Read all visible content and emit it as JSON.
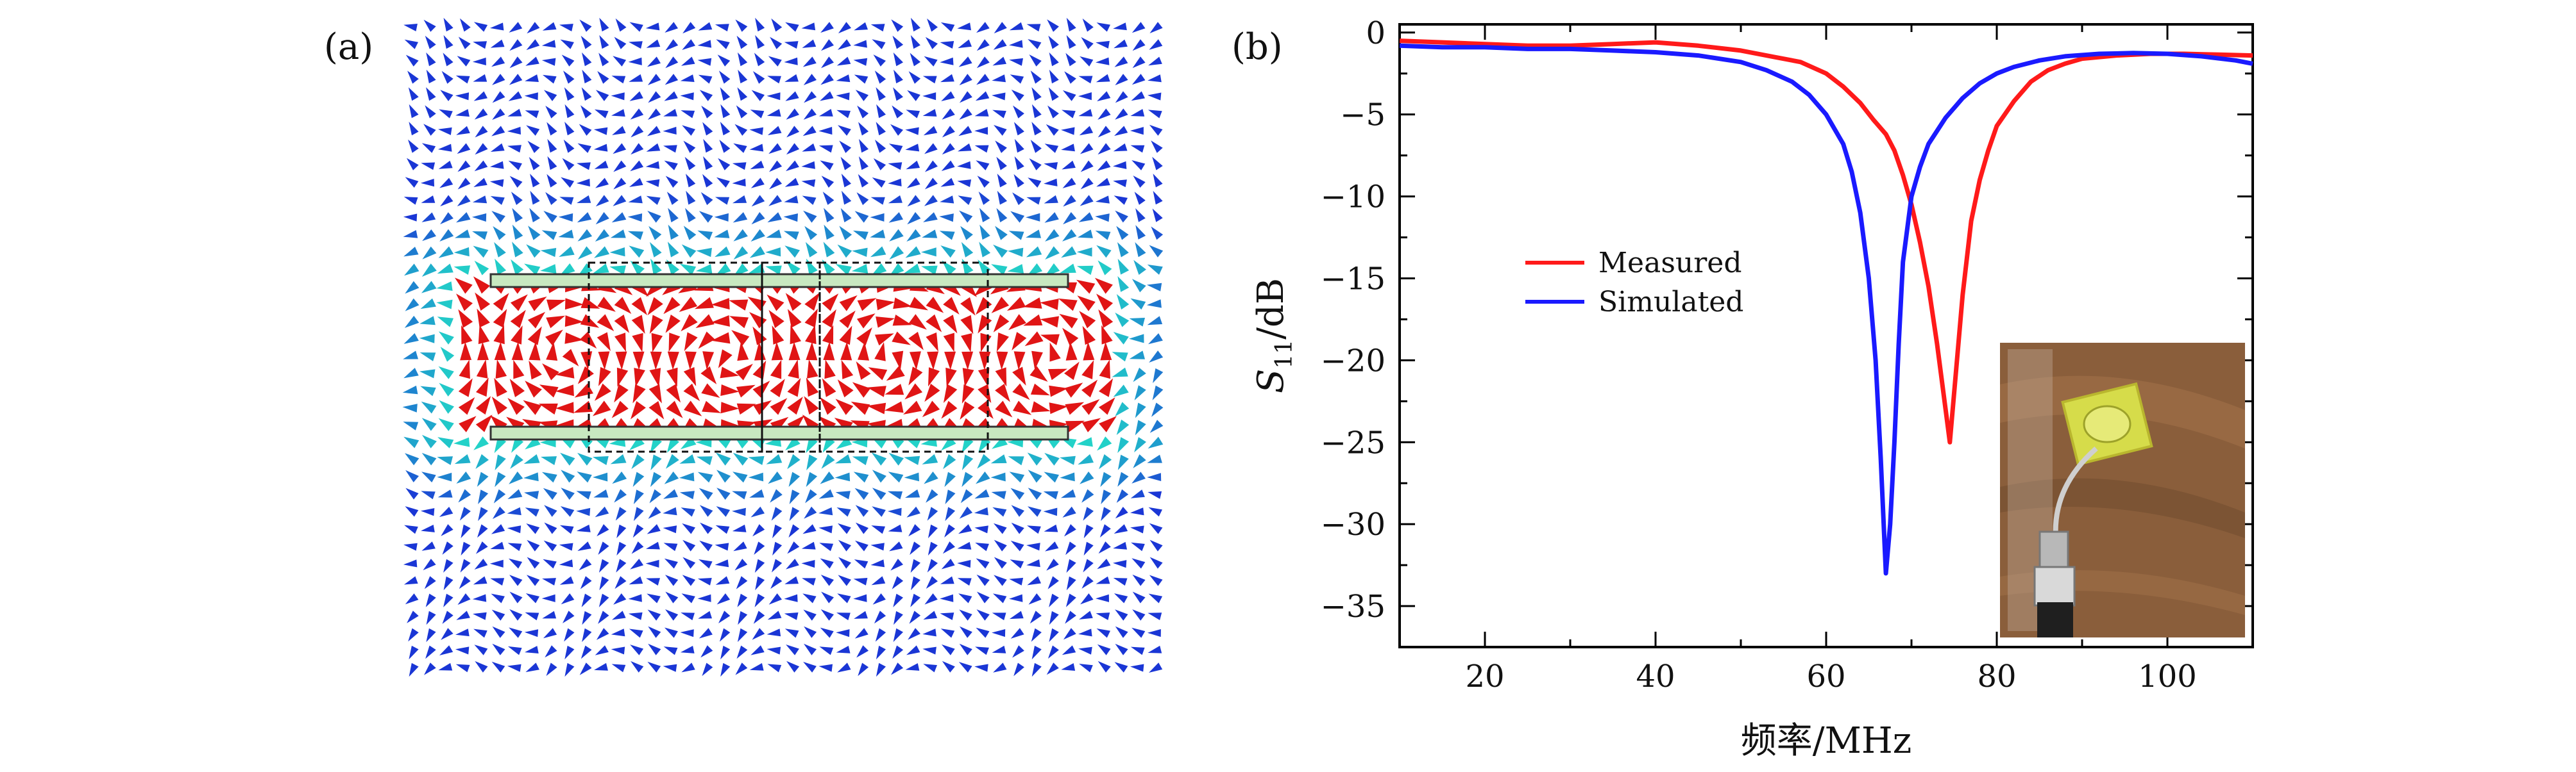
{
  "panel_a": {
    "label": "(a)",
    "description_colors": {
      "low": "#1a2fd6",
      "mid": "#22d3c8",
      "high": "#e01515",
      "strip_fill": "#c8e8c0"
    }
  },
  "panel_b": {
    "label": "(b)"
  },
  "chart_data": {
    "type": "line",
    "title": "",
    "xlabel": "频率/MHz",
    "ylabel_main": "S",
    "ylabel_sub": "11",
    "ylabel_unit": "/dB",
    "xlim": [
      10,
      110
    ],
    "ylim": [
      -37.5,
      0.5
    ],
    "xticks": [
      20,
      40,
      60,
      80,
      100
    ],
    "yticks": [
      0,
      -5,
      -10,
      -15,
      -20,
      -25,
      -30,
      -35
    ],
    "legend_position": "center-left",
    "series": [
      {
        "name": "Measured",
        "color": "#ff1a1a",
        "x": [
          10,
          15,
          20,
          25,
          30,
          35,
          40,
          45,
          50,
          54,
          57,
          60,
          62,
          64,
          65.5,
          67,
          68,
          69,
          70,
          71,
          72,
          73,
          74,
          74.5,
          75,
          76,
          77,
          78,
          79,
          80,
          82,
          84,
          86,
          88,
          90,
          94,
          98,
          102,
          106,
          110
        ],
        "y": [
          -0.5,
          -0.6,
          -0.7,
          -0.8,
          -0.8,
          -0.7,
          -0.6,
          -0.8,
          -1.1,
          -1.5,
          -1.8,
          -2.5,
          -3.3,
          -4.3,
          -5.3,
          -6.2,
          -7.2,
          -8.7,
          -10.5,
          -12.8,
          -15.5,
          -19,
          -23,
          -25,
          -22,
          -16,
          -11.5,
          -9,
          -7.2,
          -5.7,
          -4.2,
          -3,
          -2.3,
          -1.9,
          -1.6,
          -1.4,
          -1.3,
          -1.3,
          -1.35,
          -1.4
        ]
      },
      {
        "name": "Simulated",
        "color": "#1a1aff",
        "x": [
          10,
          15,
          20,
          25,
          30,
          35,
          40,
          45,
          50,
          53,
          56,
          58,
          60,
          62,
          63,
          64,
          65,
          65.8,
          66.4,
          67,
          67.5,
          68,
          68.5,
          69,
          70,
          71,
          72,
          74,
          76,
          78,
          80,
          82,
          85,
          88,
          92,
          96,
          100,
          104,
          108,
          110
        ],
        "y": [
          -0.8,
          -0.9,
          -0.9,
          -1.0,
          -1.0,
          -1.1,
          -1.2,
          -1.4,
          -1.8,
          -2.3,
          -3.0,
          -3.8,
          -5.0,
          -6.8,
          -8.5,
          -11,
          -15,
          -20,
          -26,
          -33,
          -30,
          -25,
          -19,
          -14,
          -10,
          -8.2,
          -6.8,
          -5.2,
          -4.0,
          -3.1,
          -2.5,
          -2.1,
          -1.7,
          -1.45,
          -1.3,
          -1.25,
          -1.3,
          -1.45,
          -1.7,
          -1.9
        ]
      }
    ]
  }
}
